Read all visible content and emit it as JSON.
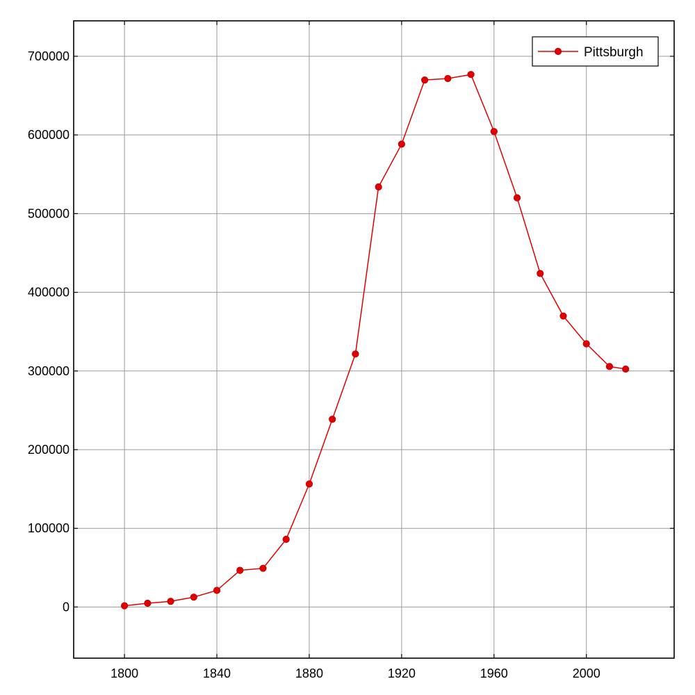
{
  "chart_data": {
    "type": "line",
    "title": "",
    "xlabel": "",
    "ylabel": "",
    "xlim": [
      1778,
      2038
    ],
    "ylim": [
      -65000,
      745000
    ],
    "x_ticks": [
      1800,
      1840,
      1880,
      1920,
      1960,
      2000
    ],
    "y_ticks": [
      0,
      100000,
      200000,
      300000,
      400000,
      500000,
      600000,
      700000
    ],
    "grid": true,
    "legend_position": "top-right",
    "series": [
      {
        "name": "Pittsburgh",
        "color": "#e00000",
        "marker": "circle",
        "points": [
          {
            "x": 1800,
            "y": 1565
          },
          {
            "x": 1810,
            "y": 4768
          },
          {
            "x": 1820,
            "y": 7248
          },
          {
            "x": 1830,
            "y": 12568
          },
          {
            "x": 1840,
            "y": 21115
          },
          {
            "x": 1850,
            "y": 46601
          },
          {
            "x": 1860,
            "y": 49221
          },
          {
            "x": 1870,
            "y": 86076
          },
          {
            "x": 1880,
            "y": 156389
          },
          {
            "x": 1890,
            "y": 238617
          },
          {
            "x": 1900,
            "y": 321616
          },
          {
            "x": 1910,
            "y": 533905
          },
          {
            "x": 1920,
            "y": 588343
          },
          {
            "x": 1930,
            "y": 669817
          },
          {
            "x": 1940,
            "y": 671659
          },
          {
            "x": 1950,
            "y": 676806
          },
          {
            "x": 1960,
            "y": 604332
          },
          {
            "x": 1970,
            "y": 520117
          },
          {
            "x": 1980,
            "y": 423938
          },
          {
            "x": 1990,
            "y": 369879
          },
          {
            "x": 2000,
            "y": 334563
          },
          {
            "x": 2010,
            "y": 305704
          },
          {
            "x": 2017,
            "y": 302407
          }
        ]
      }
    ]
  }
}
